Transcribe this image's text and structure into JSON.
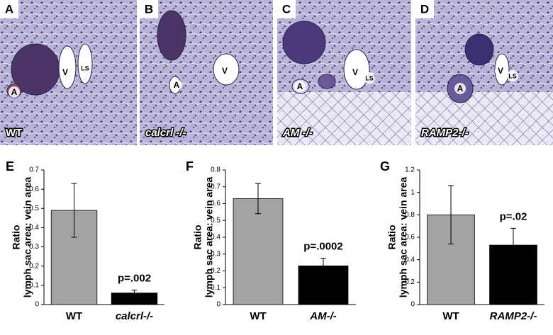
{
  "panels": [
    {
      "letter": "A",
      "genotype": "WT",
      "labels": [
        "A",
        "V",
        "LS"
      ]
    },
    {
      "letter": "B",
      "genotype": "calcrl -/-",
      "labels": [
        "A",
        "V"
      ]
    },
    {
      "letter": "C",
      "genotype": "AM -/-",
      "labels": [
        "A",
        "V",
        "LS"
      ]
    },
    {
      "letter": "D",
      "genotype": "RAMP2-/-",
      "labels": [
        "A",
        "V",
        "LS"
      ]
    }
  ],
  "chart_data": [
    {
      "type": "bar",
      "panel_label": "E",
      "ylabel": "Ratio",
      "ylabel_sub": "lymph sac area: vein area",
      "categories": [
        "WT",
        "calcrl-/-"
      ],
      "values": [
        0.49,
        0.06
      ],
      "errors": [
        0.14,
        0.015
      ],
      "colors": [
        "#a3a3a3",
        "#000000"
      ],
      "annotation": "p=.002",
      "ylim": [
        0,
        0.7
      ],
      "yticks": [
        0,
        0.1,
        0.2,
        0.3,
        0.4,
        0.5,
        0.6,
        0.7
      ]
    },
    {
      "type": "bar",
      "panel_label": "F",
      "ylabel": "Ratio",
      "ylabel_sub": "lymph sac area: vein area",
      "categories": [
        "WT",
        "AM-/-"
      ],
      "values": [
        0.63,
        0.23
      ],
      "errors": [
        0.09,
        0.045
      ],
      "colors": [
        "#a3a3a3",
        "#000000"
      ],
      "annotation": "p=.0002",
      "ylim": [
        0,
        0.8
      ],
      "yticks": [
        0,
        0.1,
        0.2,
        0.3,
        0.4,
        0.5,
        0.6,
        0.7,
        0.8
      ]
    },
    {
      "type": "bar",
      "panel_label": "G",
      "ylabel": "Ratio",
      "ylabel_sub": "lymph sac area: vein area",
      "categories": [
        "WT",
        "RAMP2-/-"
      ],
      "values": [
        0.8,
        0.53
      ],
      "errors": [
        0.26,
        0.15
      ],
      "colors": [
        "#a3a3a3",
        "#000000"
      ],
      "annotation": "p=.02",
      "ylim": [
        0,
        1.2
      ],
      "yticks": [
        0,
        0.2,
        0.4,
        0.6,
        0.8,
        1,
        1.2
      ]
    }
  ]
}
